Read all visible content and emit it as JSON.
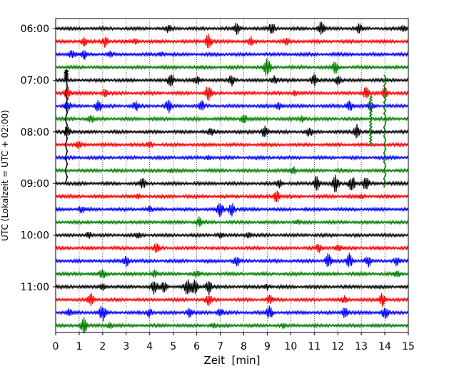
{
  "chart_data": {
    "type": "line",
    "title": "",
    "xlabel": "Zeit  [min]",
    "ylabel": "UTC (Lokalzeit = UTC + 02:00)",
    "xlim": [
      0,
      15
    ],
    "x_ticks": [
      0,
      1,
      2,
      3,
      4,
      5,
      6,
      7,
      8,
      9,
      10,
      11,
      12,
      13,
      14,
      15
    ],
    "x_tick_labels": [
      "0",
      "1",
      "2",
      "3",
      "4",
      "5",
      "6",
      "7",
      "8",
      "9",
      "10",
      "11",
      "12",
      "13",
      "14",
      "15"
    ],
    "y_tick_labels": [
      "06:00",
      "07:00",
      "08:00",
      "09:00",
      "10:00",
      "11:00"
    ],
    "trace_minutes": 15,
    "row_colors": [
      "#000000",
      "#ff0000",
      "#0000ff",
      "#008000"
    ],
    "grid": {
      "x": "dotted",
      "y": "none"
    },
    "legend": "none",
    "traces": [
      {
        "start": "06:00",
        "bursts": [
          [
            4.8,
            0.5
          ],
          [
            7.7,
            0.8
          ],
          [
            9.2,
            0.9
          ],
          [
            11.3,
            1.0
          ],
          [
            12.9,
            0.6
          ],
          [
            14.8,
            0.4
          ]
        ]
      },
      {
        "start": "06:15",
        "bursts": [
          [
            1.2,
            0.6
          ],
          [
            2.1,
            0.8
          ],
          [
            3.4,
            0.4
          ],
          [
            6.5,
            1.2
          ],
          [
            8.3,
            0.6
          ],
          [
            9.8,
            0.5
          ]
        ]
      },
      {
        "start": "06:30",
        "bursts": [
          [
            0.7,
            0.7
          ],
          [
            1.2,
            0.7
          ],
          [
            2.3,
            0.4
          ],
          [
            4.5,
            0.3
          ]
        ]
      },
      {
        "start": "06:45",
        "bursts": [
          [
            9.0,
            1.4
          ],
          [
            11.9,
            0.8
          ]
        ]
      },
      {
        "start": "07:00",
        "bursts": [
          [
            4.9,
            1.1
          ],
          [
            6.0,
            0.6
          ],
          [
            7.5,
            0.8
          ],
          [
            9.3,
            0.6
          ],
          [
            11.0,
            0.8
          ],
          [
            12.0,
            0.7
          ]
        ]
      },
      {
        "start": "07:15",
        "bursts": [
          [
            0.5,
            1.0
          ],
          [
            2.1,
            0.6
          ],
          [
            6.5,
            1.1
          ],
          [
            10.2,
            0.4
          ],
          [
            13.2,
            0.8
          ],
          [
            14.0,
            0.8
          ]
        ]
      },
      {
        "start": "07:30",
        "bursts": [
          [
            0.5,
            0.8
          ],
          [
            1.8,
            0.9
          ],
          [
            3.4,
            0.7
          ],
          [
            4.8,
            1.0
          ],
          [
            6.2,
            0.7
          ],
          [
            9.5,
            0.5
          ],
          [
            12.5,
            0.8
          ],
          [
            13.4,
            0.6
          ]
        ]
      },
      {
        "start": "07:45",
        "bursts": [
          [
            1.5,
            0.5
          ],
          [
            8.0,
            0.8
          ],
          [
            10.5,
            0.4
          ]
        ]
      },
      {
        "start": "08:00",
        "bursts": [
          [
            0.5,
            0.8
          ],
          [
            6.6,
            0.5
          ],
          [
            8.9,
            1.0
          ],
          [
            10.8,
            0.6
          ],
          [
            12.8,
            1.1
          ]
        ]
      },
      {
        "start": "08:15",
        "bursts": [
          [
            1.0,
            0.5
          ],
          [
            4.0,
            0.4
          ]
        ]
      },
      {
        "start": "08:30",
        "bursts": [
          [
            6.5,
            0.3
          ]
        ]
      },
      {
        "start": "08:45",
        "bursts": [
          [
            4.9,
            0.3
          ],
          [
            10.1,
            0.6
          ]
        ]
      },
      {
        "start": "09:00",
        "bursts": [
          [
            3.7,
            0.7
          ],
          [
            9.5,
            0.6
          ],
          [
            11.1,
            1.1
          ],
          [
            11.9,
            1.2
          ],
          [
            12.6,
            1.2
          ],
          [
            13.2,
            1.0
          ]
        ]
      },
      {
        "start": "09:15",
        "bursts": [
          [
            3.5,
            0.3
          ],
          [
            9.4,
            0.9
          ],
          [
            13.0,
            0.3
          ]
        ]
      },
      {
        "start": "09:30",
        "bursts": [
          [
            1.1,
            0.4
          ],
          [
            4.0,
            0.4
          ],
          [
            7.0,
            1.1
          ],
          [
            7.5,
            1.0
          ]
        ]
      },
      {
        "start": "09:45",
        "bursts": [
          [
            6.1,
            0.7
          ],
          [
            10.3,
            0.3
          ]
        ]
      },
      {
        "start": "10:00",
        "bursts": [
          [
            1.4,
            0.4
          ],
          [
            3.5,
            0.3
          ],
          [
            7.0,
            0.4
          ],
          [
            8.2,
            0.4
          ]
        ]
      },
      {
        "start": "10:15",
        "bursts": [
          [
            4.3,
            0.7
          ],
          [
            11.2,
            0.6
          ],
          [
            12.0,
            0.5
          ]
        ]
      },
      {
        "start": "10:30",
        "bursts": [
          [
            3.0,
            0.8
          ],
          [
            7.7,
            0.7
          ],
          [
            11.6,
            1.2
          ],
          [
            12.5,
            1.1
          ],
          [
            13.3,
            0.8
          ],
          [
            14.5,
            0.6
          ]
        ]
      },
      {
        "start": "10:45",
        "bursts": [
          [
            2.0,
            0.7
          ],
          [
            4.2,
            0.5
          ],
          [
            6.0,
            0.4
          ],
          [
            14.5,
            0.5
          ]
        ]
      },
      {
        "start": "11:00",
        "bursts": [
          [
            2.0,
            0.5
          ],
          [
            4.2,
            1.0
          ],
          [
            4.6,
            0.9
          ],
          [
            5.6,
            1.1
          ],
          [
            5.9,
            1.0
          ],
          [
            6.5,
            1.1
          ],
          [
            9.0,
            0.4
          ]
        ]
      },
      {
        "start": "11:15",
        "bursts": [
          [
            1.5,
            0.9
          ],
          [
            6.5,
            0.8
          ],
          [
            9.1,
            0.7
          ],
          [
            12.3,
            0.5
          ],
          [
            13.9,
            1.0
          ]
        ]
      },
      {
        "start": "11:30",
        "bursts": [
          [
            0.6,
            0.5
          ],
          [
            2.0,
            1.2
          ],
          [
            4.0,
            0.6
          ],
          [
            5.7,
            0.7
          ],
          [
            7.0,
            0.6
          ],
          [
            9.1,
            0.9
          ],
          [
            12.3,
            0.9
          ],
          [
            14.0,
            1.0
          ]
        ]
      },
      {
        "start": "11:45",
        "bursts": [
          [
            1.2,
            1.3
          ],
          [
            2.3,
            0.4
          ],
          [
            6.7,
            0.3
          ],
          [
            9.7,
            0.3
          ]
        ]
      }
    ],
    "tall_spikes": [
      {
        "start": "07:00",
        "x": 0.45,
        "down_rows": 8.0,
        "up_rows": 0.8,
        "color": "#000000"
      },
      {
        "start": "07:45",
        "x": 13.4,
        "down_rows": 2.0,
        "up_rows": 1.8,
        "color": "#008000"
      },
      {
        "start": "07:45",
        "x": 14.0,
        "down_rows": 5.3,
        "up_rows": 3.4,
        "color": "#008000"
      }
    ]
  }
}
